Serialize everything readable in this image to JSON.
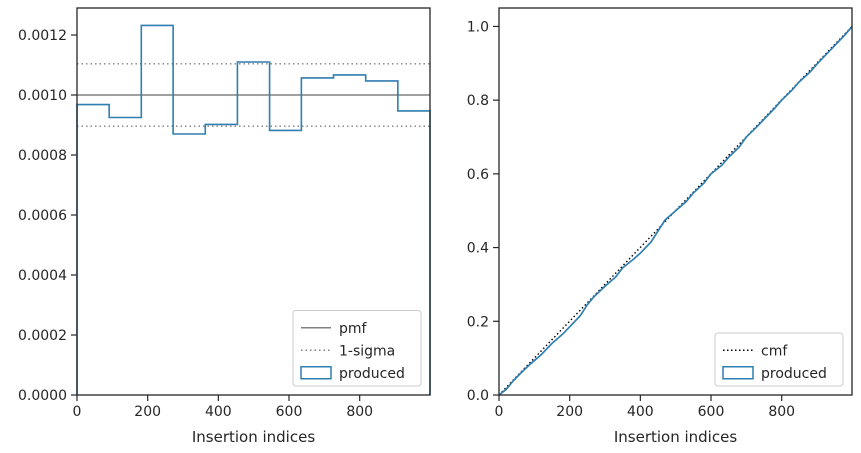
{
  "chart_data": [
    {
      "type": "step",
      "title": "",
      "xlabel": "Insertion indices",
      "ylabel": "",
      "xlim": [
        0,
        999
      ],
      "ylim": [
        0,
        0.00129
      ],
      "xticks": [
        0,
        200,
        400,
        600,
        800
      ],
      "xtick_labels": [
        "0",
        "200",
        "400",
        "600",
        "800"
      ],
      "yticks": [
        0,
        0.0002,
        0.0004,
        0.0006,
        0.0008,
        0.001,
        0.0012
      ],
      "ytick_labels": [
        "0.0000",
        "0.0002",
        "0.0004",
        "0.0006",
        "0.0008",
        "0.0010",
        "0.0012"
      ],
      "grid": false,
      "legend_position": "bottom-right",
      "legend": [
        "pmf",
        "1-sigma",
        "produced"
      ],
      "reference_lines": [
        {
          "name": "pmf",
          "y": 0.001,
          "style": "solid",
          "color": "#808080"
        },
        {
          "name": "1-sigma",
          "y": 0.001104,
          "style": "dotted",
          "color": "#808080"
        },
        {
          "name": "1-sigma",
          "y": 0.000896,
          "style": "dotted",
          "color": "#808080"
        }
      ],
      "series": [
        {
          "name": "produced",
          "color": "#2f7fb0",
          "bin_edges": [
            0,
            91,
            182,
            272,
            363,
            454,
            545,
            635,
            726,
            817,
            908,
            999
          ],
          "values": [
            0.000968,
            0.000925,
            0.001232,
            0.00087,
            0.000902,
            0.00111,
            0.000882,
            0.001057,
            0.001067,
            0.001047,
            0.000947
          ]
        }
      ]
    },
    {
      "type": "line",
      "title": "",
      "xlabel": "Insertion indices",
      "ylabel": "",
      "xlim": [
        0,
        999
      ],
      "ylim": [
        0,
        1.05
      ],
      "xticks": [
        0,
        200,
        400,
        600,
        800
      ],
      "xtick_labels": [
        "0",
        "200",
        "400",
        "600",
        "800"
      ],
      "yticks": [
        0,
        0.2,
        0.4,
        0.6,
        0.8,
        1.0
      ],
      "ytick_labels": [
        "0.0",
        "0.2",
        "0.4",
        "0.6",
        "0.8",
        "1.0"
      ],
      "grid": false,
      "legend_position": "bottom-right",
      "legend": [
        "cmf",
        "produced"
      ],
      "series": [
        {
          "name": "cmf",
          "style": "dotted",
          "color": "#000000",
          "x": [
            0,
            999
          ],
          "y": [
            0,
            1.0
          ]
        },
        {
          "name": "produced",
          "style": "solid",
          "color": "#2f7fb0",
          "x": [
            0,
            20,
            40,
            60,
            90,
            120,
            150,
            180,
            200,
            230,
            250,
            270,
            300,
            330,
            350,
            380,
            400,
            430,
            450,
            470,
            500,
            530,
            550,
            580,
            600,
            630,
            650,
            680,
            700,
            730,
            750,
            780,
            800,
            830,
            850,
            880,
            900,
            930,
            950,
            980,
            999
          ],
          "y": [
            0,
            0.015,
            0.038,
            0.058,
            0.085,
            0.11,
            0.14,
            0.165,
            0.185,
            0.215,
            0.245,
            0.268,
            0.295,
            0.32,
            0.345,
            0.368,
            0.385,
            0.415,
            0.445,
            0.475,
            0.5,
            0.525,
            0.548,
            0.575,
            0.6,
            0.623,
            0.645,
            0.673,
            0.7,
            0.728,
            0.748,
            0.778,
            0.8,
            0.828,
            0.85,
            0.876,
            0.898,
            0.928,
            0.948,
            0.978,
            1.0
          ]
        }
      ]
    }
  ]
}
